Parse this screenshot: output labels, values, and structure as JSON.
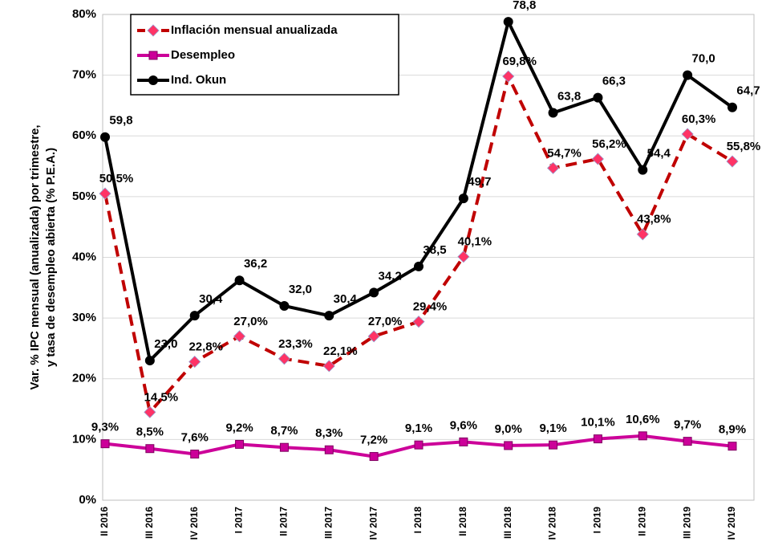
{
  "chart_data": {
    "type": "line",
    "ylabel": [
      "Var. % IPC mensual (anualizada) por trimestre,",
      "y tasa de desempleo abierta (% P.E.A.)"
    ],
    "categories": [
      "II 2016",
      "III 2016",
      "IV 2016",
      "I 2017",
      "II 2017",
      "III 2017",
      "IV 2017",
      "I 2018",
      "II 2018",
      "III 2018",
      "IV 2018",
      "I 2019",
      "II 2019",
      "III 2019",
      "IV 2019"
    ],
    "series": [
      {
        "name": "Inflación mensual anualizada",
        "color": "#c00000",
        "marker_color": "#ff3366",
        "marker": "diamond",
        "dashed": true,
        "values": [
          50.5,
          14.5,
          22.8,
          27.0,
          23.3,
          22.1,
          27.0,
          29.4,
          40.1,
          69.8,
          54.7,
          56.2,
          43.8,
          60.3,
          55.8
        ],
        "value_labels": [
          "50,5%",
          "14,5%",
          "22,8%",
          "27,0%",
          "23,3%",
          "22,1%",
          "27,0%",
          "29,4%",
          "40,1%",
          "69,8%",
          "54,7%",
          "56,2%",
          "43,8%",
          "60,3%",
          "55,8%"
        ]
      },
      {
        "name": "Desempleo",
        "color": "#cc0099",
        "marker_color": "#cc0099",
        "marker": "square",
        "dashed": false,
        "values": [
          9.3,
          8.5,
          7.6,
          9.2,
          8.7,
          8.3,
          7.2,
          9.1,
          9.6,
          9.0,
          9.1,
          10.1,
          10.6,
          9.7,
          8.9
        ],
        "value_labels": [
          "9,3%",
          "8,5%",
          "7,6%",
          "9,2%",
          "8,7%",
          "8,3%",
          "7,2%",
          "9,1%",
          "9,6%",
          "9,0%",
          "9,1%",
          "10,1%",
          "10,6%",
          "9,7%",
          "8,9%"
        ]
      },
      {
        "name": "Ind. Okun",
        "color": "#000000",
        "marker_color": "#000000",
        "marker": "circle",
        "dashed": false,
        "values": [
          59.8,
          23.0,
          30.4,
          36.2,
          32.0,
          30.4,
          34.2,
          38.5,
          49.7,
          78.8,
          63.8,
          66.3,
          54.4,
          70.0,
          64.7
        ],
        "value_labels": [
          "59,8",
          "23,0",
          "30,4",
          "36,2",
          "32,0",
          "30,4",
          "34,2",
          "38,5",
          "49,7",
          "78,8",
          "63,8",
          "66,3",
          "54,4",
          "70,0",
          "64,7"
        ]
      }
    ],
    "ylim": [
      0,
      80
    ],
    "yticks": [
      {
        "value": 0,
        "label": "0%"
      },
      {
        "value": 10,
        "label": "10%"
      },
      {
        "value": 20,
        "label": "20%"
      },
      {
        "value": 30,
        "label": "30%"
      },
      {
        "value": 40,
        "label": "40%"
      },
      {
        "value": 50,
        "label": "50%"
      },
      {
        "value": 60,
        "label": "60%"
      },
      {
        "value": 70,
        "label": "70%"
      },
      {
        "value": 80,
        "label": "80%"
      }
    ],
    "grid": true,
    "legend": "upper left"
  }
}
